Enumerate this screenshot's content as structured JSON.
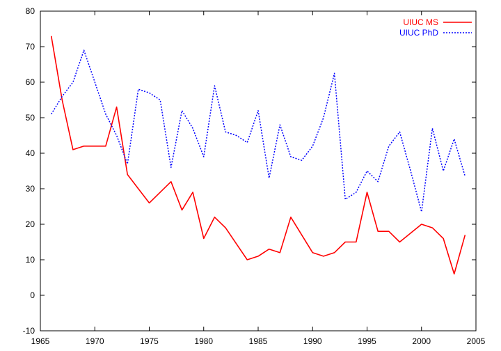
{
  "chart_data": {
    "type": "line",
    "title": "",
    "xlabel": "",
    "ylabel": "",
    "xlim": [
      1965,
      2005
    ],
    "ylim": [
      -10,
      80
    ],
    "xticks": [
      1965,
      1970,
      1975,
      1980,
      1985,
      1990,
      1995,
      2000,
      2005
    ],
    "yticks": [
      -10,
      0,
      10,
      20,
      30,
      40,
      50,
      60,
      70,
      80
    ],
    "grid": false,
    "legend_position": "top-right",
    "series": [
      {
        "name": "UIUC MS",
        "color": "#ff0000",
        "style": "solid",
        "x": [
          1966,
          1967,
          1968,
          1969,
          1970,
          1971,
          1972,
          1973,
          1974,
          1975,
          1976,
          1977,
          1978,
          1979,
          1980,
          1981,
          1982,
          1983,
          1984,
          1985,
          1986,
          1987,
          1988,
          1989,
          1990,
          1991,
          1992,
          1993,
          1994,
          1995,
          1996,
          1997,
          1998,
          1999,
          2000,
          2001,
          2002,
          2003,
          2004
        ],
        "y": [
          73,
          55,
          41,
          42,
          42,
          42,
          53,
          34,
          30,
          26,
          29,
          32,
          24,
          29,
          16,
          22,
          19,
          14.5,
          10,
          11,
          13,
          12,
          22,
          17,
          12,
          11,
          12,
          15,
          15,
          29,
          18,
          18,
          15,
          17.5,
          20,
          19,
          16,
          6,
          17
        ]
      },
      {
        "name": "UIUC PhD",
        "color": "#0000ff",
        "style": "dotted",
        "x": [
          1966,
          1967,
          1968,
          1969,
          1970,
          1971,
          1972,
          1973,
          1974,
          1975,
          1976,
          1977,
          1978,
          1979,
          1980,
          1981,
          1982,
          1983,
          1984,
          1985,
          1986,
          1987,
          1988,
          1989,
          1990,
          1991,
          1992,
          1993,
          1994,
          1995,
          1996,
          1997,
          1998,
          1999,
          2000,
          2001,
          2002,
          2003,
          2004
        ],
        "y": [
          51,
          56,
          60,
          69,
          60,
          51,
          45,
          37,
          58,
          57,
          55,
          36,
          52,
          47,
          39,
          59,
          46,
          45,
          43,
          52,
          33,
          48,
          39,
          38,
          42,
          50,
          62.5,
          27,
          29,
          35,
          32,
          42,
          46,
          35,
          23.5,
          47,
          35,
          44,
          33.5
        ]
      }
    ]
  }
}
